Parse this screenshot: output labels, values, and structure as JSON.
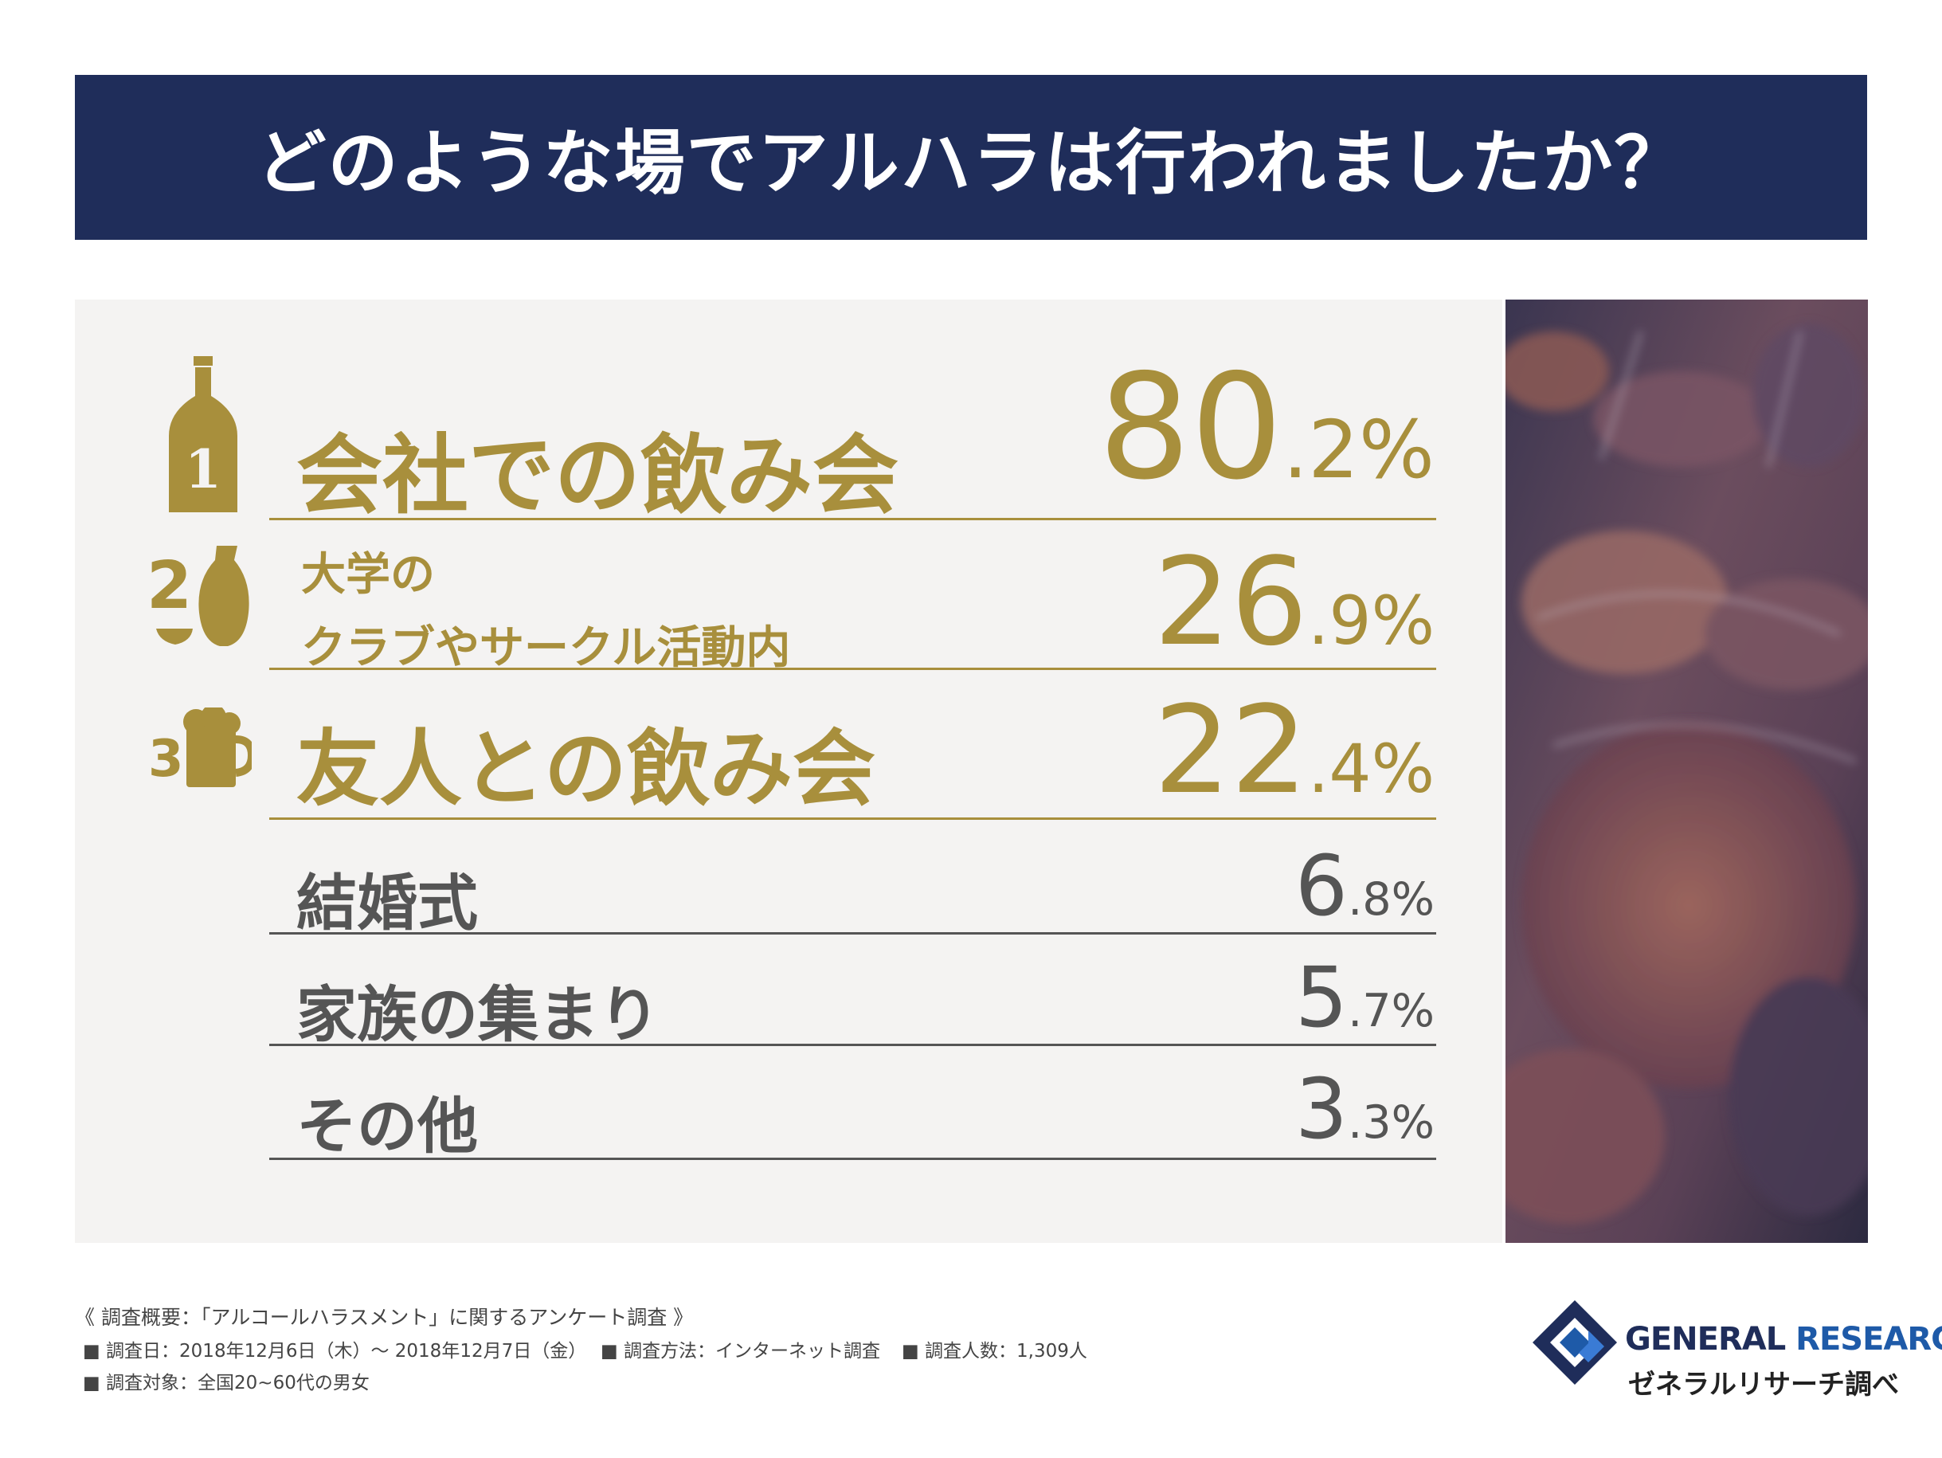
{
  "title": "どのような場でアルハラは行われましたか？",
  "chart_data": {
    "type": "table",
    "title": "どのような場でアルハラは行われましたか？",
    "rows": [
      {
        "rank": "1",
        "label": "会社での飲み会",
        "value": 80.2,
        "int": "80",
        "dec": ".2%"
      },
      {
        "rank": "2",
        "label_line1": "大学の",
        "label_line2": "クラブやサークル活動内",
        "value": 26.9,
        "int": "26",
        "dec": ".9%"
      },
      {
        "rank": "3",
        "label": "友人との飲み会",
        "value": 22.4,
        "int": "22",
        "dec": ".4%"
      },
      {
        "label": "結婚式",
        "value": 6.8,
        "int": "6",
        "dec": ".8%"
      },
      {
        "label": "家族の集まり",
        "value": 5.7,
        "int": "5",
        "dec": ".7%"
      },
      {
        "label": "その他",
        "value": 3.3,
        "int": "3",
        "dec": ".3%"
      }
    ]
  },
  "footer": {
    "summary": "《 調査概要：「アルコールハラスメント」に関するアンケート調査 》",
    "date": "■ 調査日：2018年12月6日（木）～ 2018年12月7日（金）",
    "method": "■ 調査方法：インターネット調査",
    "count": "■ 調査人数：1,309人",
    "target": "■ 調査対象：全国20~60代の男女"
  },
  "logo": {
    "word1": "GENERAL",
    "word2": "RESEARCH",
    "sub": "ゼネラルリサーチ調べ"
  },
  "colors": {
    "navy": "#1f2d5a",
    "gold": "#a88f3c",
    "gray": "#555555",
    "panel": "#f4f3f2",
    "logo_blue": "#1e5aa8"
  },
  "icons": [
    "bottle-icon",
    "sake-flask-icon",
    "beer-mug-icon"
  ]
}
